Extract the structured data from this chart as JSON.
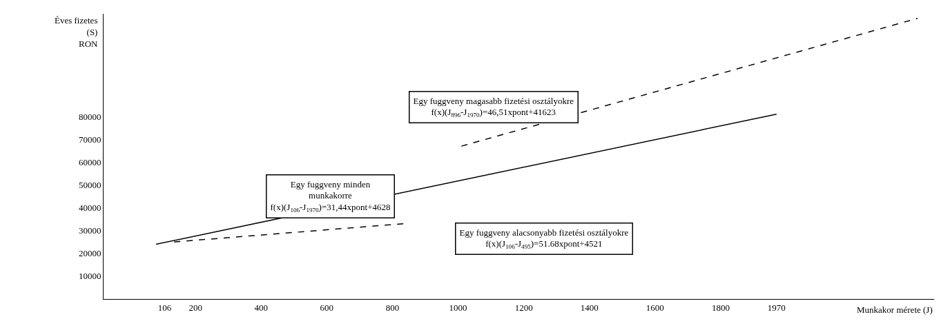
{
  "chart_data": {
    "type": "line",
    "xlabel": "Munkakor mérete (J)",
    "ylabel": "Éves fizetes\n(S)\nRON",
    "series": [
      {
        "color": "#000000",
        "line_style": "solid",
        "x": [
          80,
          1970
        ],
        "values": [
          24000,
          81000
        ]
      },
      {
        "color": "#000000",
        "line_style": "dashed",
        "x": [
          1010,
          2400
        ],
        "values": [
          67000,
          123000
        ]
      },
      {
        "color": "#000000",
        "line_style": "dashed",
        "x": [
          135,
          833
        ],
        "values": [
          25000,
          33000
        ]
      }
    ],
    "xlim": [
      -80,
      2450
    ],
    "xticks": [
      106,
      200,
      400,
      600,
      800,
      1000,
      1200,
      1400,
      1600,
      1800,
      1970
    ],
    "ylim": [
      0,
      125000
    ],
    "yticks": [
      10000,
      20000,
      30000,
      40000,
      50000,
      60000,
      70000,
      80000
    ],
    "marker": "none",
    "annotations": [
      "Egy fuggveny minden\nmunkakorre\nf(x)(J$_{106}$-J$_{1970}$)=31,44xpont+4628",
      "Egy fuggveny magasabb fizetési osztályokre\nf(x)(J$_{896}$-J$_{1970}$)=46,51xpont+41623",
      "Egy fuggveny alacsonyabb fizetési osztályokre\nf(x)(J$_{106}$-J$_{495}$)=51.68xpont+4521"
    ]
  }
}
